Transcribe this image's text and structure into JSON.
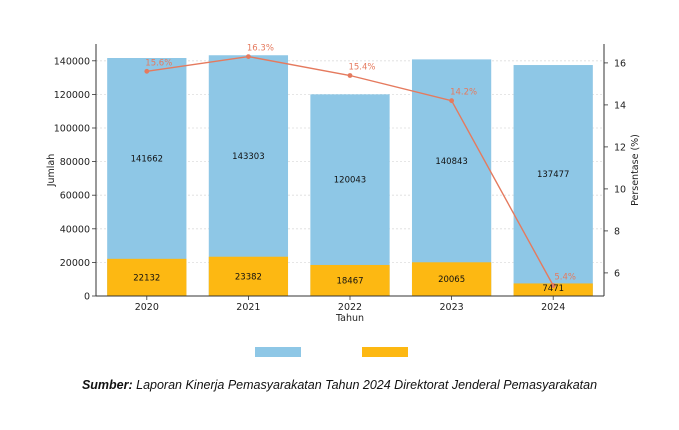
{
  "chart_data": {
    "type": "bar+line",
    "categories": [
      "2020",
      "2021",
      "2022",
      "2023",
      "2024"
    ],
    "series": [
      {
        "name": "",
        "kind": "bar",
        "axis": "left",
        "color": "#8ec7e6",
        "values": [
          141662,
          143303,
          120043,
          140843,
          137477
        ]
      },
      {
        "name": "",
        "kind": "bar",
        "axis": "left",
        "color": "#fdb812",
        "values": [
          22132,
          23382,
          18467,
          20065,
          7471
        ]
      },
      {
        "name": "",
        "kind": "line",
        "axis": "right",
        "color": "#e57a5e",
        "values": [
          15.6,
          16.3,
          15.4,
          14.2,
          5.4
        ],
        "labels": [
          "15.6%",
          "16.3%",
          "15.4%",
          "14.2%",
          "5.4%"
        ]
      }
    ],
    "xlabel": "Tahun",
    "ylabel": "Jumlah",
    "y2label": "Persentase (%)",
    "ylim": [
      0,
      150000
    ],
    "y2lim": [
      4.9,
      16.9
    ],
    "yticks": [
      0,
      20000,
      40000,
      60000,
      80000,
      100000,
      120000,
      140000
    ],
    "y2ticks": [
      6,
      8,
      10,
      12,
      14,
      16
    ],
    "grid": true,
    "legend_placement": "bottom-center"
  },
  "caption": {
    "lead": "Sumber:",
    "text": " Laporan Kinerja Pemasyarakatan Tahun 2024 Direktorat Jenderal Pemasyarakatan"
  }
}
